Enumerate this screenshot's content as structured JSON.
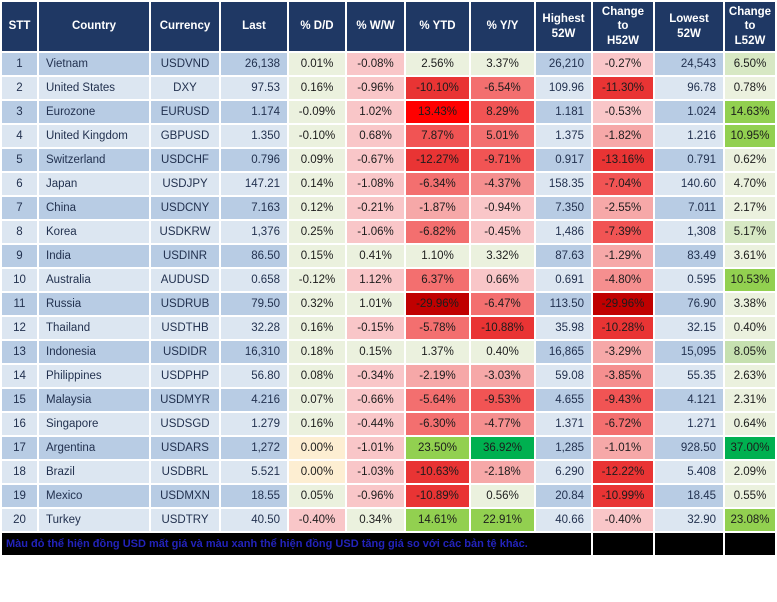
{
  "palette": {
    "header_bg": "#1f3864",
    "row_odd": "#b8cce4",
    "row_even": "#dce6f1",
    "grid": "#ffffff",
    "footer_bg": "#000000",
    "footer_text": "#2323bb",
    "g1": "#ebf1de",
    "g2": "#d7e8c4",
    "g3": "#c6e0b0",
    "g4": "#92d050",
    "g5": "#00b050",
    "y1": "#fdeed2",
    "r1": "#f9c6c8",
    "r2": "#f6a8a8",
    "r3": "#f58f8f",
    "r4": "#f36f6f",
    "r5": "#f15454",
    "r6": "#e93434",
    "r7": "#ff0000",
    "r8": "#c00000"
  },
  "columns": [
    {
      "id": "stt",
      "label": "STT"
    },
    {
      "id": "country",
      "label": "Country"
    },
    {
      "id": "currency",
      "label": "Currency"
    },
    {
      "id": "last",
      "label": "Last"
    },
    {
      "id": "dd",
      "label": "% D/D"
    },
    {
      "id": "ww",
      "label": "% W/W"
    },
    {
      "id": "ytd",
      "label": "% YTD"
    },
    {
      "id": "yy",
      "label": "% Y/Y"
    },
    {
      "id": "high52w",
      "label": "Highest\n52W"
    },
    {
      "id": "chg_h52w",
      "label": "Change\nto\nH52W"
    },
    {
      "id": "low52w",
      "label": "Lowest\n52W"
    },
    {
      "id": "chg_l52w",
      "label": "Change\nto\nL52W"
    }
  ],
  "rows": [
    {
      "stt": "1",
      "country": "Vietnam",
      "currency": "USDVND",
      "last": "26,138",
      "dd": {
        "t": "0.01%",
        "c": "g1"
      },
      "ww": {
        "t": "-0.08%",
        "c": "r1"
      },
      "ytd": {
        "t": "2.56%",
        "c": "g1"
      },
      "yy": {
        "t": "3.37%",
        "c": "g1"
      },
      "high": "26,210",
      "chg_h": {
        "t": "-0.27%",
        "c": "r1"
      },
      "low": "24,543",
      "chg_l": {
        "t": "6.50%",
        "c": "g2"
      }
    },
    {
      "stt": "2",
      "country": "United States",
      "currency": "DXY",
      "last": "97.53",
      "dd": {
        "t": "0.16%",
        "c": "g1"
      },
      "ww": {
        "t": "-0.96%",
        "c": "r1"
      },
      "ytd": {
        "t": "-10.10%",
        "c": "r6"
      },
      "yy": {
        "t": "-6.54%",
        "c": "r4"
      },
      "high": "109.96",
      "chg_h": {
        "t": "-11.30%",
        "c": "r6"
      },
      "low": "96.78",
      "chg_l": {
        "t": "0.78%",
        "c": "g1"
      }
    },
    {
      "stt": "3",
      "country": "Eurozone",
      "currency": "EURUSD",
      "last": "1.174",
      "dd": {
        "t": "-0.09%",
        "c": "g1"
      },
      "ww": {
        "t": "1.02%",
        "c": "r1"
      },
      "ytd": {
        "t": "13.43%",
        "c": "r7"
      },
      "yy": {
        "t": "8.29%",
        "c": "r5"
      },
      "high": "1.181",
      "chg_h": {
        "t": "-0.53%",
        "c": "r1"
      },
      "low": "1.024",
      "chg_l": {
        "t": "14.63%",
        "c": "g4"
      }
    },
    {
      "stt": "4",
      "country": "United Kingdom",
      "currency": "GBPUSD",
      "last": "1.350",
      "dd": {
        "t": "-0.10%",
        "c": "g1"
      },
      "ww": {
        "t": "0.68%",
        "c": "r1"
      },
      "ytd": {
        "t": "7.87%",
        "c": "r5"
      },
      "yy": {
        "t": "5.01%",
        "c": "r4"
      },
      "high": "1.375",
      "chg_h": {
        "t": "-1.82%",
        "c": "r2"
      },
      "low": "1.216",
      "chg_l": {
        "t": "10.95%",
        "c": "g4"
      }
    },
    {
      "stt": "5",
      "country": "Switzerland",
      "currency": "USDCHF",
      "last": "0.796",
      "dd": {
        "t": "0.09%",
        "c": "g1"
      },
      "ww": {
        "t": "-0.67%",
        "c": "r1"
      },
      "ytd": {
        "t": "-12.27%",
        "c": "r6"
      },
      "yy": {
        "t": "-9.71%",
        "c": "r5"
      },
      "high": "0.917",
      "chg_h": {
        "t": "-13.16%",
        "c": "r6"
      },
      "low": "0.791",
      "chg_l": {
        "t": "0.62%",
        "c": "g1"
      }
    },
    {
      "stt": "6",
      "country": "Japan",
      "currency": "USDJPY",
      "last": "147.21",
      "dd": {
        "t": "0.14%",
        "c": "g1"
      },
      "ww": {
        "t": "-1.08%",
        "c": "r1"
      },
      "ytd": {
        "t": "-6.34%",
        "c": "r4"
      },
      "yy": {
        "t": "-4.37%",
        "c": "r3"
      },
      "high": "158.35",
      "chg_h": {
        "t": "-7.04%",
        "c": "r5"
      },
      "low": "140.60",
      "chg_l": {
        "t": "4.70%",
        "c": "g1"
      }
    },
    {
      "stt": "7",
      "country": "China",
      "currency": "USDCNY",
      "last": "7.163",
      "dd": {
        "t": "0.12%",
        "c": "g1"
      },
      "ww": {
        "t": "-0.21%",
        "c": "r1"
      },
      "ytd": {
        "t": "-1.87%",
        "c": "r2"
      },
      "yy": {
        "t": "-0.94%",
        "c": "r1"
      },
      "high": "7.350",
      "chg_h": {
        "t": "-2.55%",
        "c": "r2"
      },
      "low": "7.011",
      "chg_l": {
        "t": "2.17%",
        "c": "g1"
      }
    },
    {
      "stt": "8",
      "country": "Korea",
      "currency": "USDKRW",
      "last": "1,376",
      "dd": {
        "t": "0.25%",
        "c": "g1"
      },
      "ww": {
        "t": "-1.06%",
        "c": "r1"
      },
      "ytd": {
        "t": "-6.82%",
        "c": "r4"
      },
      "yy": {
        "t": "-0.45%",
        "c": "r1"
      },
      "high": "1,486",
      "chg_h": {
        "t": "-7.39%",
        "c": "r5"
      },
      "low": "1,308",
      "chg_l": {
        "t": "5.17%",
        "c": "g2"
      }
    },
    {
      "stt": "9",
      "country": "India",
      "currency": "USDINR",
      "last": "86.50",
      "dd": {
        "t": "0.15%",
        "c": "g1"
      },
      "ww": {
        "t": "0.41%",
        "c": "g1"
      },
      "ytd": {
        "t": "1.10%",
        "c": "g1"
      },
      "yy": {
        "t": "3.32%",
        "c": "g1"
      },
      "high": "87.63",
      "chg_h": {
        "t": "-1.29%",
        "c": "r2"
      },
      "low": "83.49",
      "chg_l": {
        "t": "3.61%",
        "c": "g1"
      }
    },
    {
      "stt": "10",
      "country": "Australia",
      "currency": "AUDUSD",
      "last": "0.658",
      "dd": {
        "t": "-0.12%",
        "c": "g1"
      },
      "ww": {
        "t": "1.12%",
        "c": "r1"
      },
      "ytd": {
        "t": "6.37%",
        "c": "r4"
      },
      "yy": {
        "t": "0.66%",
        "c": "r1"
      },
      "high": "0.691",
      "chg_h": {
        "t": "-4.80%",
        "c": "r3"
      },
      "low": "0.595",
      "chg_l": {
        "t": "10.53%",
        "c": "g4"
      }
    },
    {
      "stt": "11",
      "country": "Russia",
      "currency": "USDRUB",
      "last": "79.50",
      "dd": {
        "t": "0.32%",
        "c": "g1"
      },
      "ww": {
        "t": "1.01%",
        "c": "g1"
      },
      "ytd": {
        "t": "-29.96%",
        "c": "r8"
      },
      "yy": {
        "t": "-6.47%",
        "c": "r4"
      },
      "high": "113.50",
      "chg_h": {
        "t": "-29.96%",
        "c": "r8"
      },
      "low": "76.90",
      "chg_l": {
        "t": "3.38%",
        "c": "g1"
      }
    },
    {
      "stt": "12",
      "country": "Thailand",
      "currency": "USDTHB",
      "last": "32.28",
      "dd": {
        "t": "0.16%",
        "c": "g1"
      },
      "ww": {
        "t": "-0.15%",
        "c": "r1"
      },
      "ytd": {
        "t": "-5.78%",
        "c": "r4"
      },
      "yy": {
        "t": "-10.88%",
        "c": "r6"
      },
      "high": "35.98",
      "chg_h": {
        "t": "-10.28%",
        "c": "r6"
      },
      "low": "32.15",
      "chg_l": {
        "t": "0.40%",
        "c": "g1"
      }
    },
    {
      "stt": "13",
      "country": "Indonesia",
      "currency": "USDIDR",
      "last": "16,310",
      "dd": {
        "t": "0.18%",
        "c": "g1"
      },
      "ww": {
        "t": "0.15%",
        "c": "g1"
      },
      "ytd": {
        "t": "1.37%",
        "c": "g1"
      },
      "yy": {
        "t": "0.40%",
        "c": "g1"
      },
      "high": "16,865",
      "chg_h": {
        "t": "-3.29%",
        "c": "r2"
      },
      "low": "15,095",
      "chg_l": {
        "t": "8.05%",
        "c": "g3"
      }
    },
    {
      "stt": "14",
      "country": "Philippines",
      "currency": "USDPHP",
      "last": "56.80",
      "dd": {
        "t": "0.08%",
        "c": "g1"
      },
      "ww": {
        "t": "-0.34%",
        "c": "r1"
      },
      "ytd": {
        "t": "-2.19%",
        "c": "r2"
      },
      "yy": {
        "t": "-3.03%",
        "c": "r2"
      },
      "high": "59.08",
      "chg_h": {
        "t": "-3.85%",
        "c": "r3"
      },
      "low": "55.35",
      "chg_l": {
        "t": "2.63%",
        "c": "g1"
      }
    },
    {
      "stt": "15",
      "country": "Malaysia",
      "currency": "USDMYR",
      "last": "4.216",
      "dd": {
        "t": "0.07%",
        "c": "g1"
      },
      "ww": {
        "t": "-0.66%",
        "c": "r1"
      },
      "ytd": {
        "t": "-5.64%",
        "c": "r4"
      },
      "yy": {
        "t": "-9.53%",
        "c": "r5"
      },
      "high": "4.655",
      "chg_h": {
        "t": "-9.43%",
        "c": "r5"
      },
      "low": "4.121",
      "chg_l": {
        "t": "2.31%",
        "c": "g1"
      }
    },
    {
      "stt": "16",
      "country": "Singapore",
      "currency": "USDSGD",
      "last": "1.279",
      "dd": {
        "t": "0.16%",
        "c": "g1"
      },
      "ww": {
        "t": "-0.44%",
        "c": "r1"
      },
      "ytd": {
        "t": "-6.30%",
        "c": "r4"
      },
      "yy": {
        "t": "-4.77%",
        "c": "r3"
      },
      "high": "1.371",
      "chg_h": {
        "t": "-6.72%",
        "c": "r4"
      },
      "low": "1.271",
      "chg_l": {
        "t": "0.64%",
        "c": "g1"
      }
    },
    {
      "stt": "17",
      "country": "Argentina",
      "currency": "USDARS",
      "last": "1,272",
      "dd": {
        "t": "0.00%",
        "c": "y1"
      },
      "ww": {
        "t": "-1.01%",
        "c": "r1"
      },
      "ytd": {
        "t": "23.50%",
        "c": "g4"
      },
      "yy": {
        "t": "36.92%",
        "c": "g5"
      },
      "high": "1,285",
      "chg_h": {
        "t": "-1.01%",
        "c": "r2"
      },
      "low": "928.50",
      "chg_l": {
        "t": "37.00%",
        "c": "g5"
      }
    },
    {
      "stt": "18",
      "country": "Brazil",
      "currency": "USDBRL",
      "last": "5.521",
      "dd": {
        "t": "0.00%",
        "c": "y1"
      },
      "ww": {
        "t": "-1.03%",
        "c": "r1"
      },
      "ytd": {
        "t": "-10.63%",
        "c": "r6"
      },
      "yy": {
        "t": "-2.18%",
        "c": "r2"
      },
      "high": "6.290",
      "chg_h": {
        "t": "-12.22%",
        "c": "r6"
      },
      "low": "5.408",
      "chg_l": {
        "t": "2.09%",
        "c": "g1"
      }
    },
    {
      "stt": "19",
      "country": "Mexico",
      "currency": "USDMXN",
      "last": "18.55",
      "dd": {
        "t": "0.05%",
        "c": "g1"
      },
      "ww": {
        "t": "-0.96%",
        "c": "r1"
      },
      "ytd": {
        "t": "-10.89%",
        "c": "r6"
      },
      "yy": {
        "t": "0.56%",
        "c": "g1"
      },
      "high": "20.84",
      "chg_h": {
        "t": "-10.99%",
        "c": "r6"
      },
      "low": "18.45",
      "chg_l": {
        "t": "0.55%",
        "c": "g1"
      }
    },
    {
      "stt": "20",
      "country": "Turkey",
      "currency": "USDTRY",
      "last": "40.50",
      "dd": {
        "t": "-0.40%",
        "c": "r1"
      },
      "ww": {
        "t": "0.34%",
        "c": "g1"
      },
      "ytd": {
        "t": "14.61%",
        "c": "g4"
      },
      "yy": {
        "t": "22.91%",
        "c": "g4"
      },
      "high": "40.66",
      "chg_h": {
        "t": "-0.40%",
        "c": "r1"
      },
      "low": "32.90",
      "chg_l": {
        "t": "23.08%",
        "c": "g4"
      }
    }
  ],
  "footer": {
    "note": "Màu đỏ thể hiện đồng USD mất giá và màu xanh thể hiện đồng USD tăng giá so với các bản tệ khác."
  }
}
